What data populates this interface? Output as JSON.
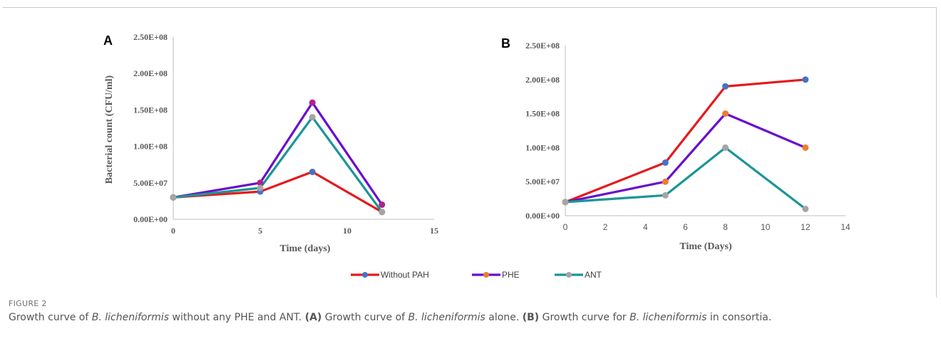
{
  "legend": [
    {
      "name": "Without PAH",
      "line_color": "#e41a1c",
      "marker_color": "#4472c4"
    },
    {
      "name": "PHE",
      "line_color": "#6a0dcc",
      "marker_color": "#ed7d31"
    },
    {
      "name": "ANT",
      "line_color": "#1a9596",
      "marker_color": "#a5a5a5"
    }
  ],
  "caption": {
    "label": "FIGURE 2",
    "parts": [
      {
        "text": "Growth curve of ",
        "style": "normal"
      },
      {
        "text": "B. licheniformis",
        "style": "italic"
      },
      {
        "text": " without any PHE and ANT. ",
        "style": "normal"
      },
      {
        "text": "(A)",
        "style": "bold"
      },
      {
        "text": " Growth curve of ",
        "style": "normal"
      },
      {
        "text": "B. licheniformis",
        "style": "italic"
      },
      {
        "text": " alone. ",
        "style": "normal"
      },
      {
        "text": "(B)",
        "style": "bold"
      },
      {
        "text": " Growth curve for ",
        "style": "normal"
      },
      {
        "text": "B. licheniformis",
        "style": "italic"
      },
      {
        "text": " in consortia.",
        "style": "normal"
      }
    ]
  },
  "chart_data": [
    {
      "type": "line",
      "panel": "A",
      "xlabel": "Time (days)",
      "ylabel": "Bacterial count (CFU/ml)",
      "xlim": [
        0,
        15
      ],
      "ylim": [
        0,
        250000000
      ],
      "x_ticks": [
        "0",
        "5",
        "10",
        "15"
      ],
      "y_ticks": [
        "0.00E+00",
        "5.00E+07",
        "1.00E+08",
        "1.50E+08",
        "2.00E+08",
        "2.50E+08"
      ],
      "x": [
        0,
        5,
        8,
        12
      ],
      "series": [
        {
          "name": "Without PAH",
          "values": [
            30000000,
            38000000,
            65000000,
            10000000
          ],
          "line_color": "#e41a1c",
          "marker_color": "#4472c4"
        },
        {
          "name": "PHE",
          "values": [
            30000000,
            50000000,
            160000000,
            20000000
          ],
          "line_color": "#6a0dcc",
          "marker_color": "#b0218a"
        },
        {
          "name": "ANT",
          "values": [
            30000000,
            43000000,
            140000000,
            10000000
          ],
          "line_color": "#1a9596",
          "marker_color": "#a5a5a5"
        }
      ],
      "grid": false
    },
    {
      "type": "line",
      "panel": "B",
      "xlabel": "Time (Days)",
      "ylabel": "",
      "xlim": [
        0,
        14
      ],
      "ylim": [
        0,
        250000000
      ],
      "x_ticks": [
        "0",
        "2",
        "4",
        "6",
        "8",
        "10",
        "12",
        "14"
      ],
      "y_ticks": [
        "0.00E+00",
        "5.00E+07",
        "1.00E+08",
        "1.50E+08",
        "2.00E+08",
        "2.50E+08"
      ],
      "x": [
        0,
        5,
        8,
        12
      ],
      "series": [
        {
          "name": "Without PAH",
          "values": [
            20000000,
            78000000,
            190000000,
            200000000
          ],
          "line_color": "#e41a1c",
          "marker_color": "#4472c4"
        },
        {
          "name": "PHE",
          "values": [
            20000000,
            50000000,
            150000000,
            100000000
          ],
          "line_color": "#6a0dcc",
          "marker_color": "#ed7d31"
        },
        {
          "name": "ANT",
          "values": [
            20000000,
            30000000,
            100000000,
            10000000
          ],
          "line_color": "#1a9596",
          "marker_color": "#a5a5a5"
        }
      ],
      "grid": false
    }
  ]
}
